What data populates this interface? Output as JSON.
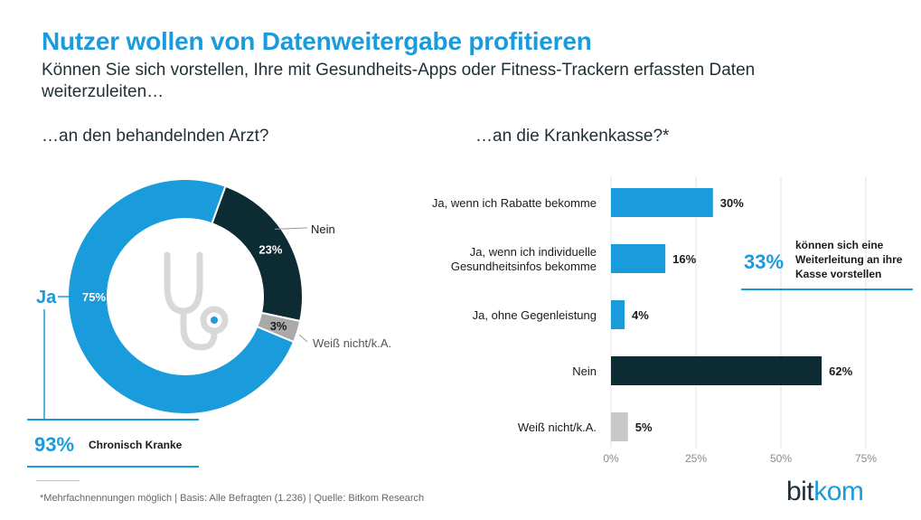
{
  "header": {
    "title": "Nutzer wollen von Datenweitergabe profitieren",
    "subtitle": "Können Sie sich vorstellen, Ihre mit Gesundheits-Apps oder Fitness-Trackern erfassten Daten weiterzuleiten…"
  },
  "chart_data": [
    {
      "type": "pie",
      "title": "…an den behandelnden  Arzt?",
      "slices": [
        {
          "label": "Ja",
          "value": 75,
          "value_label": "75%",
          "color": "#1a9bdb"
        },
        {
          "label": "Nein",
          "value": 23,
          "value_label": "23%",
          "color": "#0d2b33"
        },
        {
          "label": "Weiß nicht/k.A.",
          "value": 3,
          "value_label": "3%",
          "color": "#a9a9a9"
        }
      ],
      "center_icon": "stethoscope-icon",
      "annotation": {
        "value_label": "93%",
        "text": "Chronisch Kranke"
      }
    },
    {
      "type": "bar",
      "orientation": "horizontal",
      "title": "…an die Krankenkasse?*",
      "categories": [
        "Ja, wenn ich Rabatte bekomme",
        "Ja, wenn ich individuelle Gesundheitsinfos bekomme",
        "Ja, ohne Gegenleistung",
        "Nein",
        "Weiß nicht/k.A."
      ],
      "category_lines": [
        [
          "Ja, wenn ich Rabatte bekomme"
        ],
        [
          "Ja, wenn ich individuelle",
          "Gesundheitsinfos bekomme"
        ],
        [
          "Ja, ohne Gegenleistung"
        ],
        [
          "Nein"
        ],
        [
          "Weiß nicht/k.A."
        ]
      ],
      "values": [
        30,
        16,
        4,
        62,
        5
      ],
      "value_labels": [
        "30%",
        "16%",
        "4%",
        "62%",
        "5%"
      ],
      "colors": [
        "#1a9bdb",
        "#1a9bdb",
        "#1a9bdb",
        "#0d2b33",
        "#c8c8c8"
      ],
      "xlim": [
        0,
        75
      ],
      "ticks": [
        0,
        25,
        50,
        75
      ],
      "tick_labels": [
        "0%",
        "25%",
        "50%",
        "75%"
      ],
      "grid": true,
      "annotation": {
        "value_label": "33%",
        "text": "können sich eine Weiterleitung an ihre Kasse vorstellen"
      }
    }
  ],
  "footnote": "*Mehrfachnennungen möglich | Basis: Alle Befragten (1.236) | Quelle: Bitkom Research",
  "logo": {
    "text_a": "bit",
    "text_b": "kom"
  }
}
